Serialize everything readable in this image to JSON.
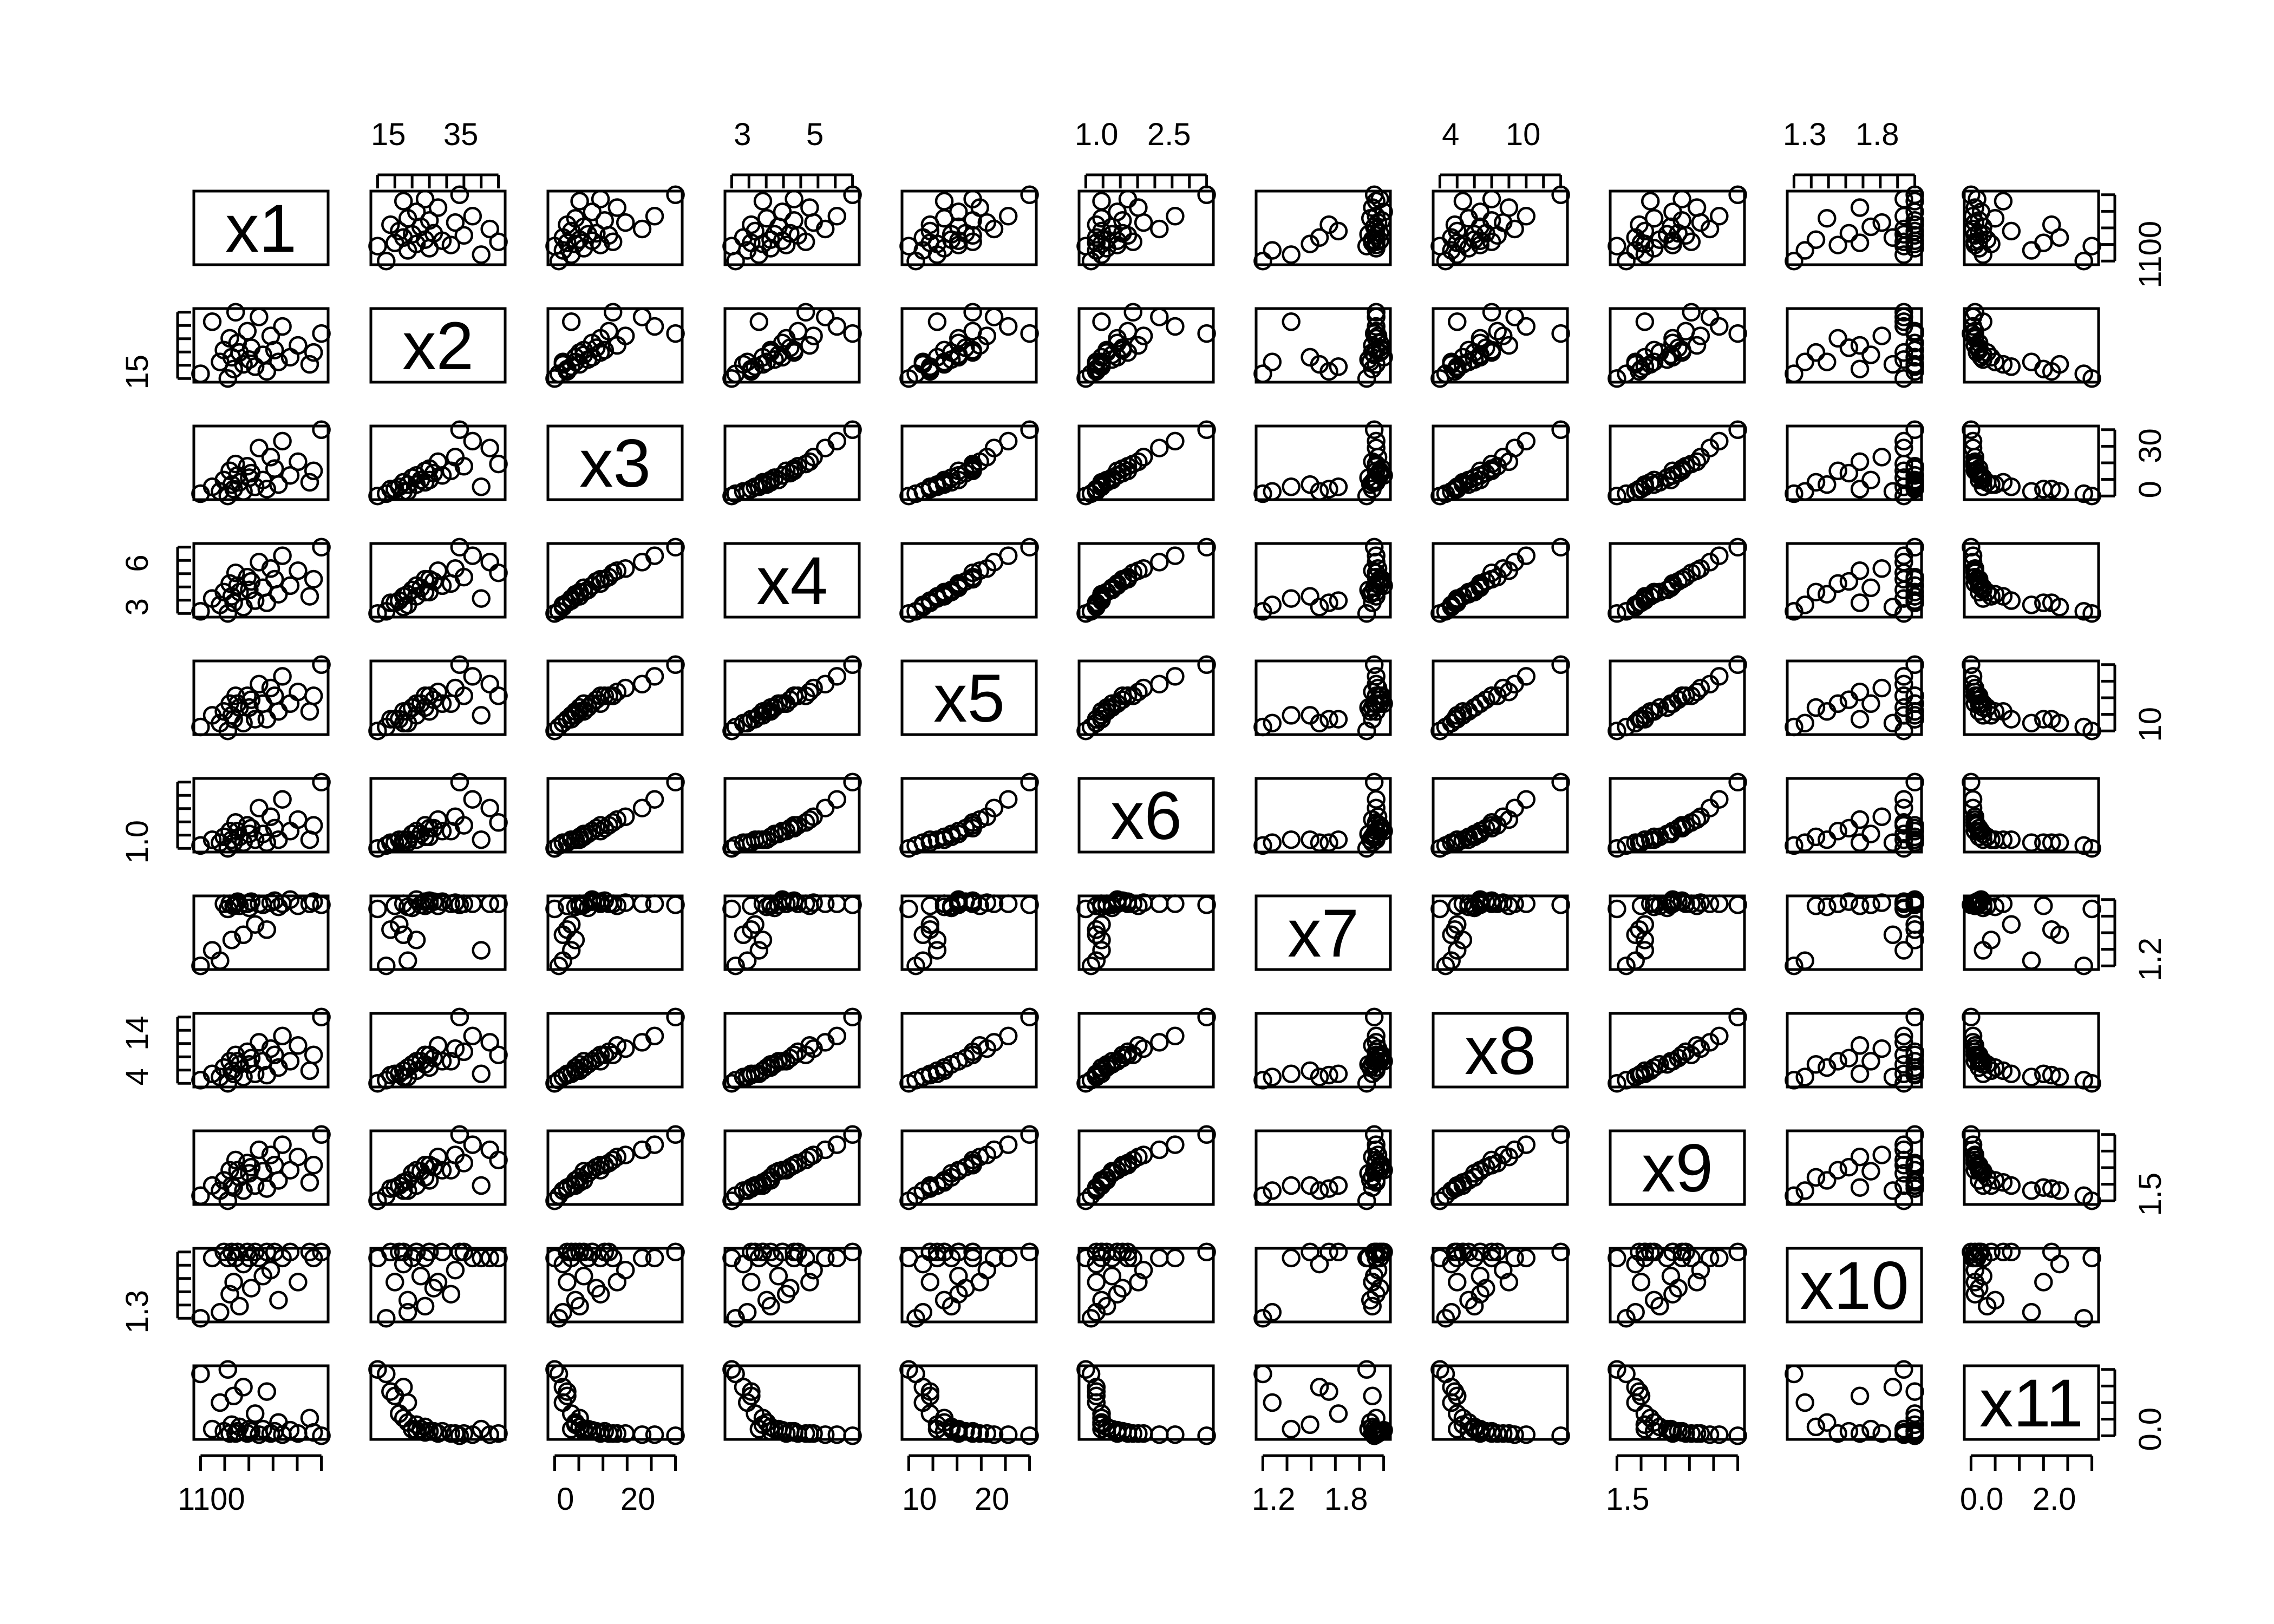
{
  "chart_data": {
    "type": "scatter",
    "kind": "scatterplot-matrix",
    "variables": [
      "x1",
      "x2",
      "x3",
      "x4",
      "x5",
      "x6",
      "x7",
      "x8",
      "x9",
      "x10",
      "x11"
    ],
    "axis_labels": {
      "top": [
        [
          "15",
          "35"
        ],
        [
          "3",
          "5"
        ],
        [
          "1.0",
          "2.5"
        ],
        [
          "4",
          "10"
        ],
        [
          "1.3",
          "1.8"
        ]
      ],
      "right": [
        [
          "1100"
        ],
        [
          "0",
          "30"
        ],
        [
          "10"
        ],
        [
          "1.2"
        ],
        [
          "1.5"
        ],
        [
          "0.0"
        ]
      ],
      "left": [
        [
          "15"
        ],
        [
          "3",
          "6"
        ],
        [
          "1.0"
        ],
        [
          "4",
          "14"
        ],
        [
          "1.3"
        ]
      ],
      "bottom": [
        [
          "1100"
        ],
        [
          "0",
          "20"
        ],
        [
          "10",
          "20"
        ],
        [
          "1.2",
          "1.8"
        ],
        [
          "1.5"
        ],
        [
          "0.0",
          "2.0"
        ]
      ]
    },
    "n_points": 28,
    "data": {
      "x1": [
        1030,
        1060,
        1080,
        1090,
        1100,
        1105,
        1110,
        1115,
        1120,
        1125,
        1130,
        1140,
        1150,
        1155,
        1160,
        1170,
        1180,
        1190,
        1200,
        1210,
        1220,
        1230,
        1240,
        1260,
        1280,
        1310,
        1320,
        1340
      ],
      "x2": [
        20,
        42,
        25,
        30,
        18,
        35,
        27,
        22,
        46,
        33,
        29,
        24,
        38,
        26,
        31,
        23,
        44,
        28,
        21,
        36,
        30,
        25,
        40,
        27,
        32,
        24,
        29,
        37
      ],
      "x3": [
        2,
        5,
        3,
        8,
        1,
        12,
        6,
        4,
        15,
        10,
        7,
        3,
        14,
        9,
        11,
        5,
        22,
        8,
        4,
        18,
        13,
        6,
        25,
        10,
        16,
        7,
        12,
        30
      ],
      "x4": [
        3.0,
        3.6,
        3.3,
        3.9,
        2.9,
        4.3,
        3.7,
        3.4,
        4.8,
        4.2,
        3.9,
        3.2,
        4.6,
        4.0,
        4.4,
        3.5,
        5.3,
        4.1,
        3.4,
        5.0,
        4.5,
        3.8,
        5.6,
        4.2,
        4.9,
        3.7,
        4.5,
        6.0
      ],
      "x5": [
        5,
        8,
        6,
        9,
        4,
        11,
        8,
        7,
        13,
        11,
        10,
        6,
        13,
        10,
        12,
        7,
        16,
        11,
        7,
        15,
        13,
        9,
        18,
        11,
        14,
        9,
        13,
        21
      ],
      "x6": [
        0.8,
        1.0,
        0.9,
        1.1,
        0.7,
        1.3,
        1.0,
        0.9,
        1.6,
        1.3,
        1.1,
        0.9,
        1.5,
        1.2,
        1.4,
        1.0,
        2.1,
        1.2,
        0.9,
        1.8,
        1.4,
        1.0,
        2.4,
        1.3,
        1.7,
        1.0,
        1.5,
        3.0
      ],
      "x7": [
        1.2,
        1.35,
        1.25,
        1.8,
        1.75,
        1.8,
        1.45,
        1.78,
        1.8,
        1.82,
        1.78,
        1.5,
        1.8,
        1.76,
        1.82,
        1.6,
        1.8,
        1.79,
        1.55,
        1.81,
        1.83,
        1.77,
        1.8,
        1.84,
        1.78,
        1.8,
        1.82,
        1.79
      ],
      "x8": [
        4,
        5,
        4.5,
        6,
        3.5,
        7,
        5.5,
        5,
        8,
        7,
        6.5,
        4.5,
        8.5,
        6.5,
        7.5,
        5,
        10,
        7,
        4.8,
        9,
        8,
        6,
        11,
        7,
        9.5,
        5.5,
        8,
        14
      ],
      "x9": [
        1.2,
        1.3,
        1.25,
        1.35,
        1.15,
        1.45,
        1.3,
        1.28,
        1.55,
        1.45,
        1.38,
        1.25,
        1.52,
        1.42,
        1.48,
        1.3,
        1.65,
        1.44,
        1.27,
        1.6,
        1.5,
        1.35,
        1.7,
        1.45,
        1.58,
        1.33,
        1.5,
        1.8
      ],
      "x10": [
        1.3,
        1.8,
        1.35,
        1.85,
        1.8,
        1.5,
        1.85,
        1.6,
        1.8,
        1.85,
        1.4,
        1.75,
        1.85,
        1.8,
        1.55,
        1.85,
        1.8,
        1.65,
        1.85,
        1.7,
        1.85,
        1.45,
        1.8,
        1.85,
        1.6,
        1.85,
        1.8,
        1.85
      ],
      "x11": [
        2.8,
        0.3,
        1.5,
        0.2,
        3.0,
        0.1,
        0.5,
        1.8,
        0.1,
        0.2,
        0.4,
        2.2,
        0.1,
        0.3,
        0.2,
        1.0,
        0.05,
        0.3,
        2.0,
        0.1,
        0.2,
        0.6,
        0.05,
        0.25,
        0.1,
        0.8,
        0.15,
        0.0
      ]
    }
  }
}
